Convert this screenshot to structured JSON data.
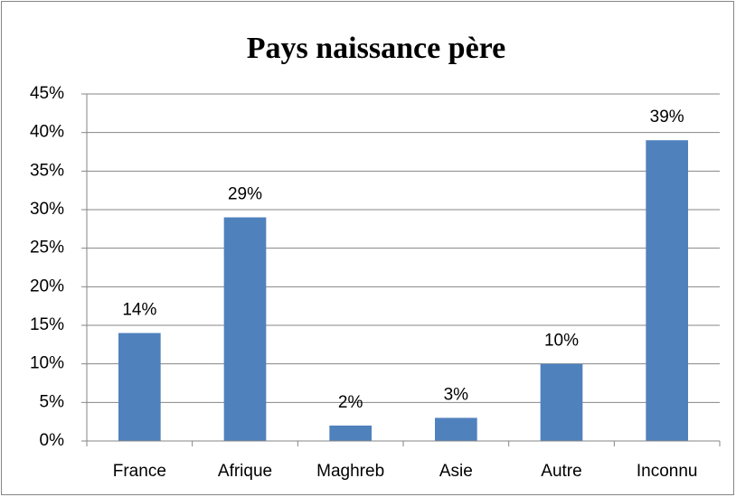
{
  "chart_data": {
    "type": "bar",
    "title": "Pays naissance père",
    "categories": [
      "France",
      "Afrique",
      "Maghreb",
      "Asie",
      "Autre",
      "Inconnu"
    ],
    "values": [
      14,
      29,
      2,
      3,
      10,
      39
    ],
    "value_labels": [
      "14%",
      "29%",
      "2%",
      "3%",
      "10%",
      "39%"
    ],
    "color": "#4f81bd",
    "ylim": [
      0,
      45
    ],
    "yticks": [
      {
        "value": 0,
        "label": "0%"
      },
      {
        "value": 5,
        "label": "5%"
      },
      {
        "value": 10,
        "label": "10%"
      },
      {
        "value": 15,
        "label": "15%"
      },
      {
        "value": 20,
        "label": "20%"
      },
      {
        "value": 25,
        "label": "25%"
      },
      {
        "value": 30,
        "label": "30%"
      },
      {
        "value": 35,
        "label": "35%"
      },
      {
        "value": 40,
        "label": "40%"
      },
      {
        "value": 45,
        "label": "45%"
      }
    ],
    "grid": true
  }
}
